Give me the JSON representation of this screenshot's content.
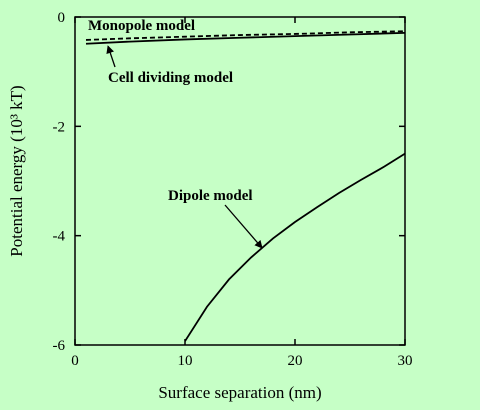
{
  "chart_data": {
    "type": "line",
    "xlabel": "Surface separation (nm)",
    "ylabel": "Potential energy (10³ kT)",
    "xlim": [
      0,
      30
    ],
    "ylim": [
      -6,
      0
    ],
    "x_ticks": [
      0,
      10,
      20,
      30
    ],
    "x_tick_labels": [
      "0",
      "10",
      "20",
      "30"
    ],
    "y_ticks": [
      0,
      -2,
      -4,
      -6
    ],
    "y_tick_labels": [
      "0",
      "-2",
      "-4",
      "-6"
    ],
    "grid": false,
    "legend": "none",
    "background_color": "#c6ffc6",
    "series": [
      {
        "name": "Monopole model",
        "style": "dashed",
        "x": [
          1,
          5,
          10,
          15,
          20,
          25,
          30
        ],
        "y": [
          -0.42,
          -0.39,
          -0.36,
          -0.33,
          -0.31,
          -0.28,
          -0.26
        ]
      },
      {
        "name": "Cell dividing model",
        "style": "solid",
        "x": [
          1,
          5,
          10,
          15,
          20,
          25,
          30
        ],
        "y": [
          -0.49,
          -0.45,
          -0.41,
          -0.38,
          -0.35,
          -0.32,
          -0.29
        ]
      },
      {
        "name": "Dipole model",
        "style": "solid",
        "x": [
          10,
          12,
          14,
          16,
          18,
          20,
          22,
          24,
          26,
          28,
          30
        ],
        "y": [
          -5.93,
          -5.3,
          -4.8,
          -4.4,
          -4.05,
          -3.75,
          -3.48,
          -3.22,
          -2.98,
          -2.75,
          -2.5
        ]
      }
    ],
    "annotations": [
      {
        "text": "Monopole model",
        "arrow": false
      },
      {
        "text": "Cell dividing model",
        "arrow": true,
        "arrow_to": [
          3,
          -0.46
        ]
      },
      {
        "text": "Dipole model",
        "arrow": true,
        "arrow_to": [
          17,
          -4.15
        ]
      }
    ]
  }
}
